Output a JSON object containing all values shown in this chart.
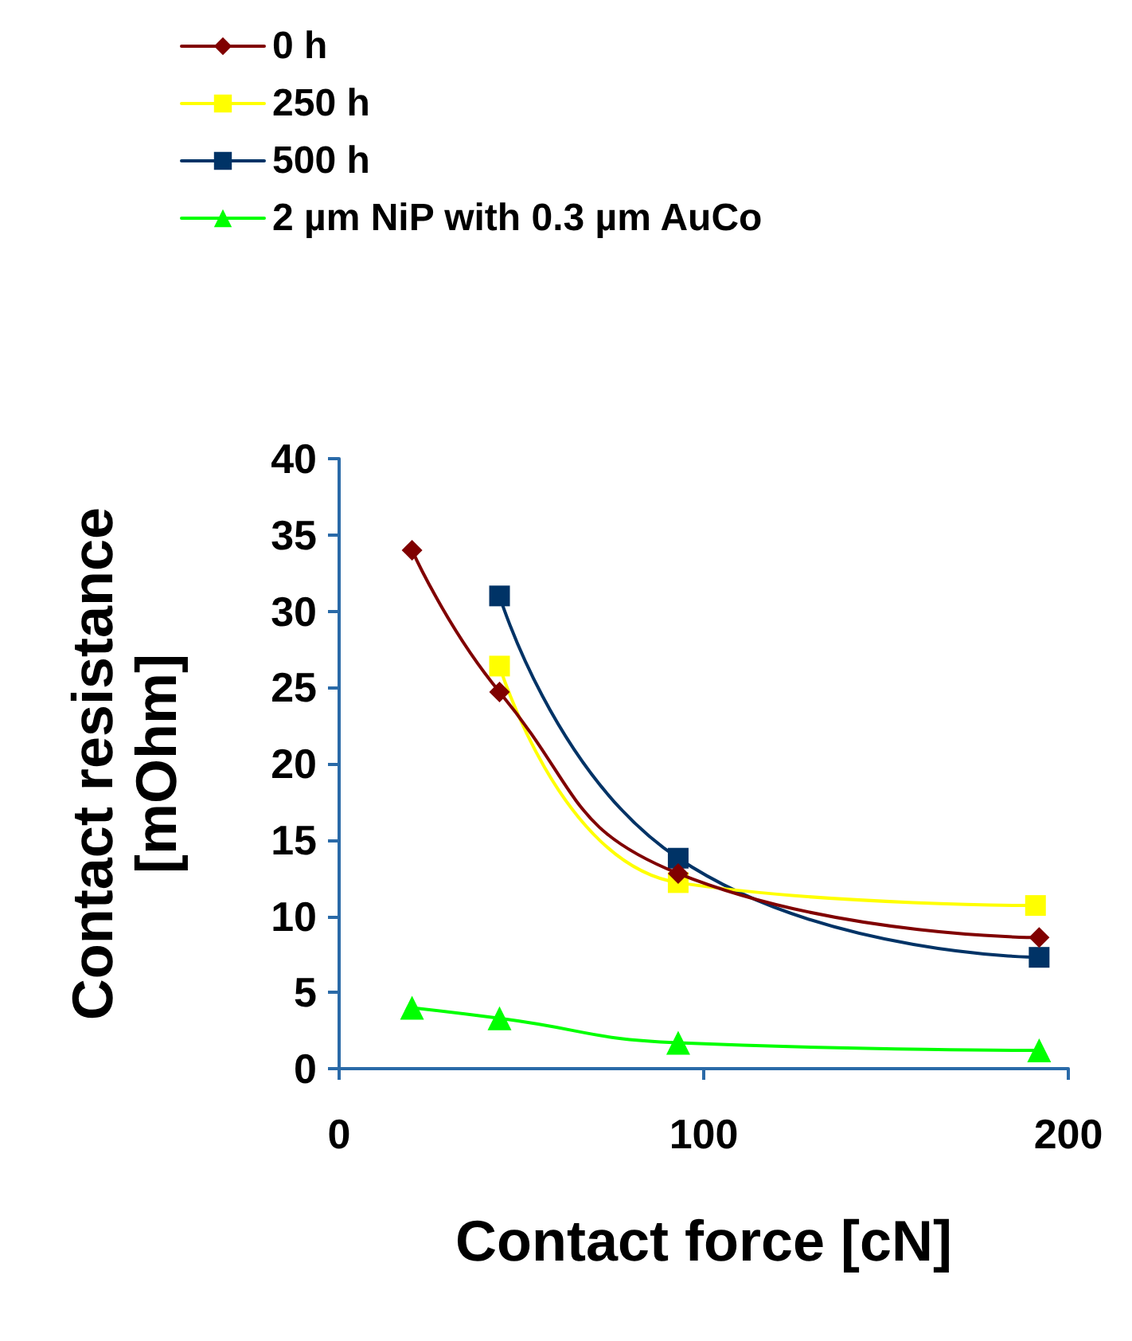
{
  "chart_data": {
    "type": "line",
    "xlabel": "Contact force [cN]",
    "ylabel": "Contact resistance\n[mOhm]",
    "xlim": [
      0,
      200
    ],
    "xticks": [
      0,
      100,
      200
    ],
    "ylim": [
      0,
      40
    ],
    "yticks": [
      0,
      5,
      10,
      15,
      20,
      25,
      30,
      35,
      40
    ],
    "legend": "top left",
    "line_style": "solid",
    "series": [
      {
        "name": "0 h",
        "color": "#800000",
        "marker": "diamond",
        "x": [
          20,
          44,
          93,
          192
        ],
        "values": [
          34.0,
          24.7,
          12.8,
          8.6
        ]
      },
      {
        "name": "250 h",
        "color": "#ffff00",
        "marker": "square",
        "x": [
          44,
          93,
          191
        ],
        "values": [
          26.4,
          12.2,
          10.7
        ]
      },
      {
        "name": "500 h",
        "color": "#003366",
        "marker": "square",
        "x": [
          44,
          93,
          192
        ],
        "values": [
          31.0,
          13.8,
          7.3
        ]
      },
      {
        "name": "2 µm NiP with 0.3 µm AuCo",
        "color": "#00ff00",
        "marker": "triangle",
        "x": [
          20,
          44,
          93,
          192
        ],
        "values": [
          4.0,
          3.3,
          1.7,
          1.2
        ]
      }
    ]
  }
}
